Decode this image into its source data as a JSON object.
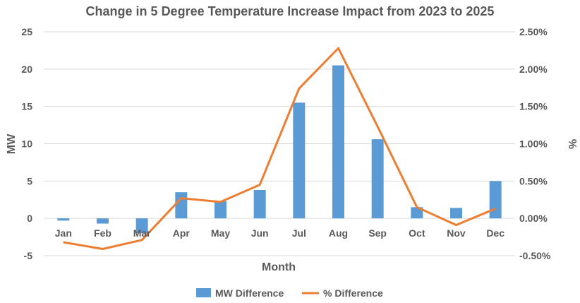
{
  "chart_data": {
    "type": "bar",
    "title": "Change in 5 Degree Temperature Increase Impact from 2023 to 2025",
    "xlabel": "Month",
    "ylabel": "MW",
    "y2label": "%",
    "categories": [
      "Jan",
      "Feb",
      "Mar",
      "Apr",
      "May",
      "Jun",
      "Jul",
      "Aug",
      "Sep",
      "Oct",
      "Nov",
      "Dec"
    ],
    "ylim": [
      -5,
      25
    ],
    "y_ticks": [
      -5,
      0,
      5,
      10,
      15,
      20,
      25
    ],
    "y2lim": [
      -0.005,
      0.025
    ],
    "y2_ticks": [
      -0.005,
      0,
      0.005,
      0.01,
      0.015,
      0.02,
      0.025
    ],
    "y2_tick_labels": [
      "-0.50%",
      "0.00%",
      "0.50%",
      "1.00%",
      "1.50%",
      "2.00%",
      "2.50%"
    ],
    "grid": true,
    "legend_position": "bottom",
    "series": [
      {
        "name": "MW Difference",
        "type": "bar",
        "axis": "left",
        "color": "#5b9bd5",
        "values": [
          -0.3,
          -0.7,
          -2.0,
          3.5,
          2.3,
          3.8,
          15.5,
          20.5,
          10.6,
          1.5,
          1.4,
          5.0
        ]
      },
      {
        "name": "% Difference",
        "type": "line",
        "axis": "right",
        "color": "#ed7d31",
        "values": [
          -0.0032,
          -0.0041,
          -0.0029,
          0.0027,
          0.0022,
          0.0045,
          0.0174,
          0.0228,
          0.0123,
          0.0015,
          -0.0009,
          0.0013
        ]
      }
    ]
  }
}
